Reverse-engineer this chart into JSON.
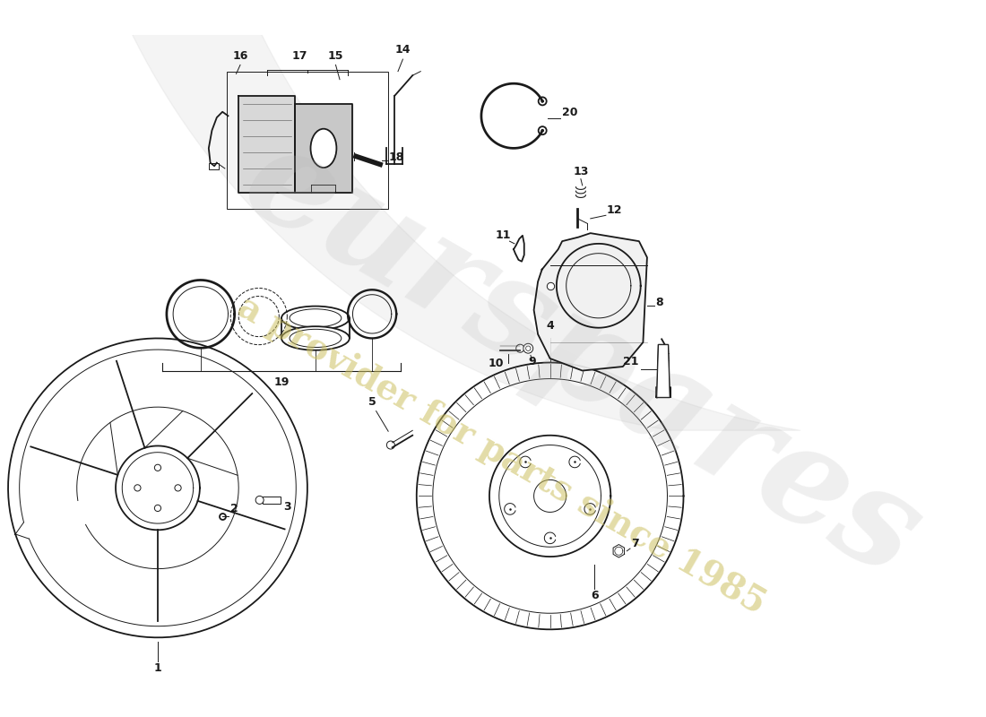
{
  "background_color": "#ffffff",
  "line_color": "#1a1a1a",
  "watermark_text1": "eurspares",
  "watermark_text2": "a provider for parts since 1985",
  "watermark_color1": "#b8b8b8",
  "watermark_color2": "#ccc060"
}
